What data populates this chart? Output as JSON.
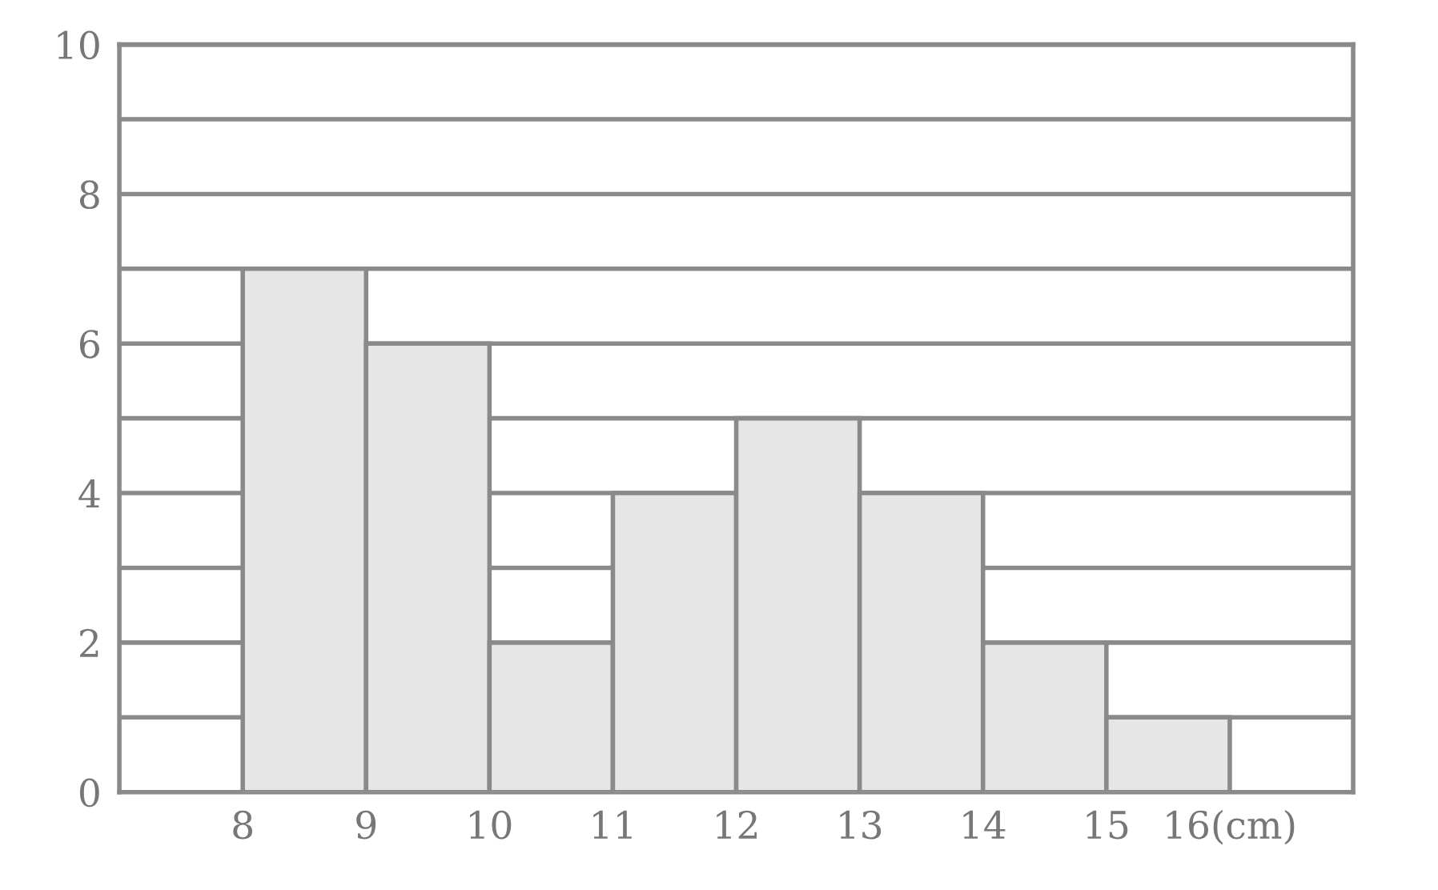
{
  "chart_data": {
    "type": "histogram",
    "bins": [
      8,
      9,
      10,
      11,
      12,
      13,
      14,
      15,
      16
    ],
    "values": [
      7,
      6,
      2,
      4,
      5,
      4,
      2,
      1
    ],
    "color": "#e6e6e6",
    "xlim": [
      7,
      17
    ],
    "ylim": [
      0,
      10
    ],
    "xticks": [
      8,
      9,
      10,
      11,
      12,
      13,
      14,
      15,
      {
        "value": 16,
        "label": "16(cm)"
      }
    ],
    "yticks": [
      0,
      {
        "value": 1,
        "label": null
      },
      2,
      {
        "value": 3,
        "label": null
      },
      4,
      {
        "value": 5,
        "label": null
      },
      6,
      {
        "value": 7,
        "label": null
      },
      8,
      {
        "value": 9,
        "label": null
      },
      10
    ],
    "grid": "y"
  }
}
